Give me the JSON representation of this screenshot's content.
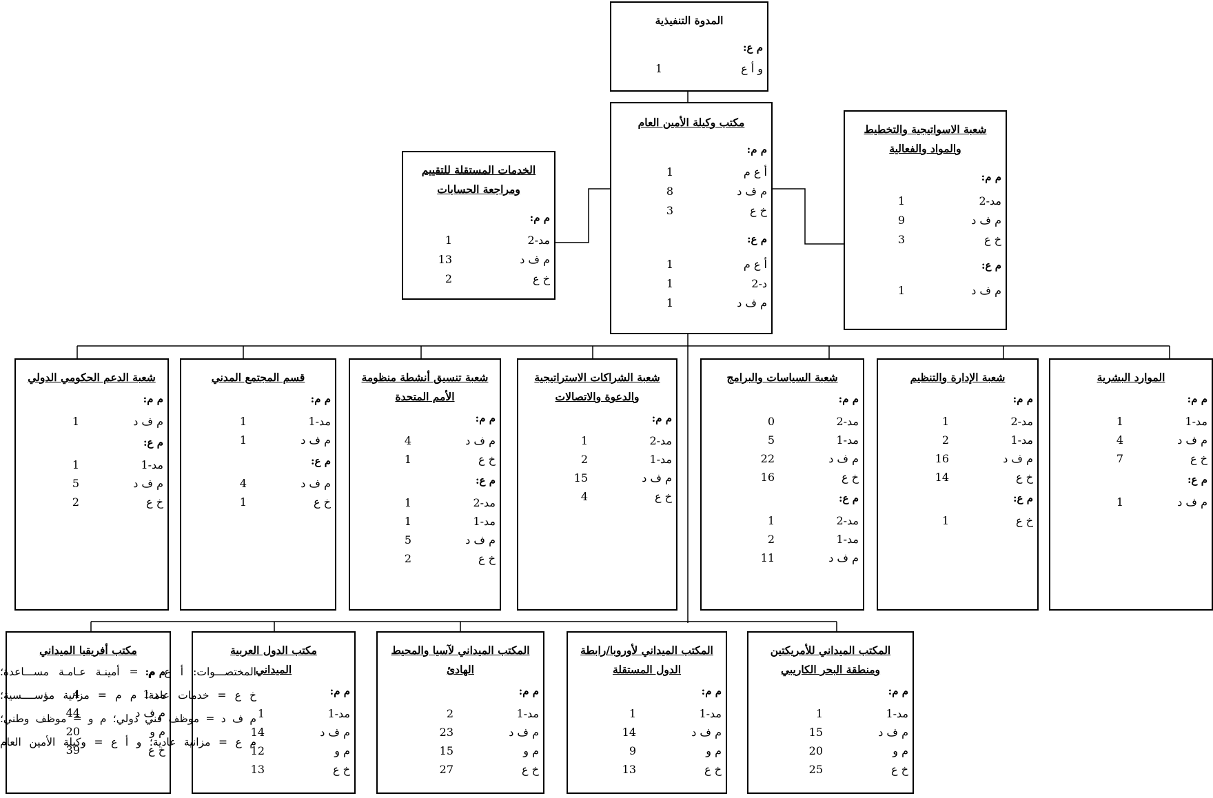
{
  "section_labels": {
    "posts": "م م:",
    "extra": "م ع:"
  },
  "executive": {
    "title": "المدوة التنفيذية",
    "extra": [
      {
        "code": "و أ ع",
        "value": "1"
      }
    ]
  },
  "usg": {
    "title": "مكتب وكيلة الأمين العام",
    "posts": [
      {
        "code": "أ ع م",
        "value": "1"
      },
      {
        "code": "م ف د",
        "value": "8"
      },
      {
        "code": "خ ع",
        "value": "3"
      }
    ],
    "extra": [
      {
        "code": "أ ع م",
        "value": "1"
      },
      {
        "code": "د-2",
        "value": "1"
      },
      {
        "code": "م ف د",
        "value": "1"
      }
    ]
  },
  "strategy": {
    "title_lines": [
      "شعبة الاسواتيجية والتخطيط",
      "والمواد والفعالية"
    ],
    "posts": [
      {
        "code": "مد-2",
        "value": "1"
      },
      {
        "code": "م ف د",
        "value": "9"
      },
      {
        "code": "خ ع",
        "value": "3"
      }
    ],
    "extra": [
      {
        "code": "م ف د",
        "value": "1"
      }
    ]
  },
  "audit": {
    "title_lines": [
      "الخدمات المستقلة للتقييم",
      "ومراجعة الحسابات"
    ],
    "posts": [
      {
        "code": "مد-2",
        "value": "1"
      },
      {
        "code": "م ف د",
        "value": "13"
      },
      {
        "code": "خ ع",
        "value": "2"
      }
    ]
  },
  "divisions": [
    {
      "id": "hr",
      "title_lines": [
        "الموارد البشرية"
      ],
      "posts": [
        {
          "code": "مد-1",
          "value": "1"
        },
        {
          "code": "م ف د",
          "value": "4"
        },
        {
          "code": "خ ع",
          "value": "7"
        }
      ],
      "extra": [
        {
          "code": "م ف د",
          "value": "1"
        }
      ]
    },
    {
      "id": "mgmt",
      "title_lines": [
        "شعبة الإدارة والتنظيم"
      ],
      "posts": [
        {
          "code": "مد-2",
          "value": "1"
        },
        {
          "code": "مد-1",
          "value": "2"
        },
        {
          "code": "م ف د",
          "value": "16"
        },
        {
          "code": "خ ع",
          "value": "14"
        }
      ],
      "extra": [
        {
          "code": "خ ع",
          "value": "1"
        }
      ]
    },
    {
      "id": "policy",
      "title_lines": [
        "شعبة السياسات والبرامج"
      ],
      "posts": [
        {
          "code": "مد-2",
          "value": "0"
        },
        {
          "code": "مد-1",
          "value": "5"
        },
        {
          "code": "م ف د",
          "value": "22"
        },
        {
          "code": "خ ع",
          "value": "16"
        }
      ],
      "extra": [
        {
          "code": "مد-2",
          "value": "1"
        },
        {
          "code": "مد-1",
          "value": "2"
        },
        {
          "code": "م ف د",
          "value": "11"
        }
      ]
    },
    {
      "id": "partnerships",
      "title_lines": [
        "شعبة الشراكات الاستراتيجية",
        "والدعوة والاتصالات"
      ],
      "posts": [
        {
          "code": "مد-2",
          "value": "1"
        },
        {
          "code": "مد-1",
          "value": "2"
        },
        {
          "code": "م ف د",
          "value": "15"
        },
        {
          "code": "خ ع",
          "value": "4"
        }
      ],
      "extra": []
    },
    {
      "id": "coordination",
      "title_lines": [
        "شعبة تنسيق أنشطة منظومة",
        "الأمم المتحدة"
      ],
      "posts": [
        {
          "code": "م ف د",
          "value": "4"
        },
        {
          "code": "خ ع",
          "value": "1"
        }
      ],
      "extra": [
        {
          "code": "مد-2",
          "value": "1"
        },
        {
          "code": "مد-1",
          "value": "1"
        },
        {
          "code": "م ف د",
          "value": "5"
        },
        {
          "code": "خ ع",
          "value": "2"
        }
      ]
    },
    {
      "id": "civil",
      "title_lines": [
        "قسم المجتمع المدني"
      ],
      "posts": [
        {
          "code": "مد-1",
          "value": "1"
        },
        {
          "code": "م ف د",
          "value": "1"
        }
      ],
      "extra": [
        {
          "code": "م ف د",
          "value": "4"
        },
        {
          "code": "خ ع",
          "value": "1"
        }
      ]
    },
    {
      "id": "intergov",
      "title_lines": [
        "شعبة الدعم الحكومي الدولي"
      ],
      "posts": [
        {
          "code": "م ف د",
          "value": "1"
        }
      ],
      "extra": [
        {
          "code": "مد-1",
          "value": "1"
        },
        {
          "code": "م ف د",
          "value": "5"
        },
        {
          "code": "خ ع",
          "value": "2"
        }
      ]
    }
  ],
  "field_offices": [
    {
      "id": "americas",
      "title_lines": [
        "المكتب الميداني للأمريكتين",
        "ومنطقة البحر الكاريبي"
      ],
      "posts": [
        {
          "code": "مد-1",
          "value": "1"
        },
        {
          "code": "م ف د",
          "value": "15"
        },
        {
          "code": "م و",
          "value": "20"
        },
        {
          "code": "خ ع",
          "value": "25"
        }
      ]
    },
    {
      "id": "europe",
      "title_lines": [
        "المكتب الميداني لأوروبا/رابطة",
        "الدول المستقلة"
      ],
      "posts": [
        {
          "code": "مد-1",
          "value": "1"
        },
        {
          "code": "م ف د",
          "value": "14"
        },
        {
          "code": "م و",
          "value": "9"
        },
        {
          "code": "خ ع",
          "value": "13"
        }
      ]
    },
    {
      "id": "asia",
      "title_lines": [
        "المكتب الميداني لآسيا والمحيط",
        "الهادئ"
      ],
      "posts": [
        {
          "code": "مد-1",
          "value": "2"
        },
        {
          "code": "م ف د",
          "value": "23"
        },
        {
          "code": "م و",
          "value": "15"
        },
        {
          "code": "خ ع",
          "value": "27"
        }
      ]
    },
    {
      "id": "arab",
      "title_lines": [
        "مكتب الدول العربية",
        "الميداني"
      ],
      "posts": [
        {
          "code": "مد-1",
          "value": "1"
        },
        {
          "code": "م ف د",
          "value": "14"
        },
        {
          "code": "م و",
          "value": "12"
        },
        {
          "code": "خ ع",
          "value": "13"
        }
      ]
    },
    {
      "id": "africa",
      "title_lines": [
        "مكتب أفريقيا الميداني"
      ],
      "posts": [
        {
          "code": "مد-1",
          "value": "4"
        },
        {
          "code": "م ف د",
          "value": "44"
        },
        {
          "code": "م و",
          "value": "20"
        },
        {
          "code": "خ ع",
          "value": "39"
        }
      ]
    }
  ],
  "legend": [
    "المختصـــوات: أ ع م = أمينـة عـامـة مســـاعدة؛",
    "خ ع = خدمات عامة؛ م م = مزانية مؤســــسية؛",
    "م ف د = موظف فني دولي؛ م و = موظف وطني؛",
    "م ع = مزانية عادية؛ و أ ع = وكيلة الأمين العام"
  ]
}
